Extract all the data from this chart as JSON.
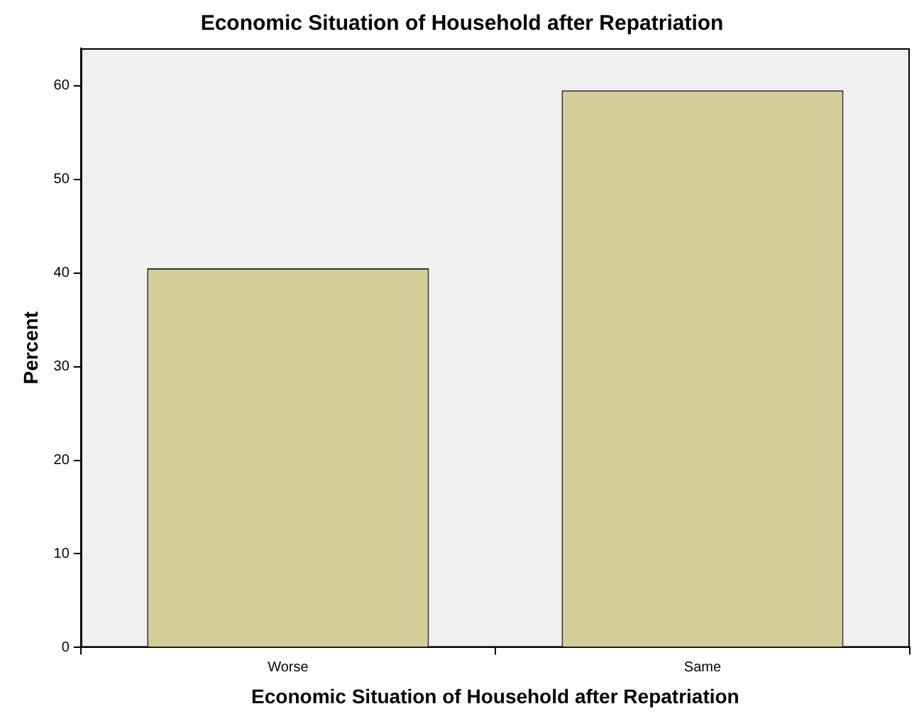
{
  "chart_data": {
    "type": "bar",
    "title": "Economic Situation of Household after Repatriation",
    "xlabel": "Economic Situation of Household after Repatriation",
    "ylabel": "Percent",
    "categories": [
      "Worse",
      "Same"
    ],
    "values": [
      40.5,
      59.5
    ],
    "color": "#d3ce97",
    "ylim": [
      0,
      64
    ],
    "yticks": [
      0,
      10,
      20,
      30,
      40,
      50,
      60
    ],
    "grid": false,
    "legend": false
  }
}
